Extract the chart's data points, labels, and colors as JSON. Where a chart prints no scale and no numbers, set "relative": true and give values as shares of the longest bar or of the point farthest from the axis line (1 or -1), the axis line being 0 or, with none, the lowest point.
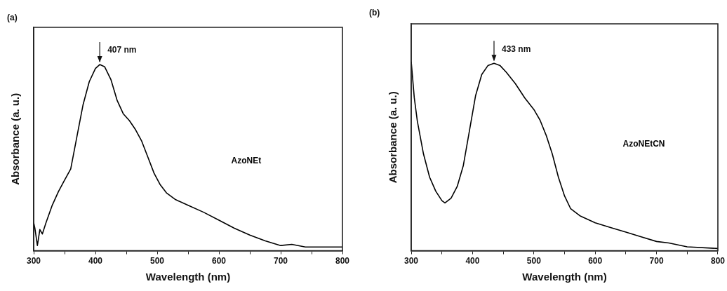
{
  "chart_data": [
    {
      "type": "line",
      "title": "(a)",
      "xlabel": "Wavelength (nm)",
      "ylabel": "Absorbance (a. u.)",
      "relative": true,
      "xlim": [
        300,
        800
      ],
      "xticks": [
        300,
        {
          "value": 350,
          "label": null
        },
        400,
        {
          "value": 450,
          "label": null
        },
        500,
        {
          "value": 550,
          "label": null
        },
        600,
        {
          "value": 650,
          "label": null
        },
        700,
        {
          "value": 750,
          "label": null
        },
        800
      ],
      "grid": false,
      "legend": false,
      "marker": "none",
      "line_style": "solid",
      "annotations": [
        {
          "text": "407 nm",
          "x": 407,
          "y": 1
        }
      ],
      "series": [
        {
          "name": "AzoNEt",
          "color": "#000000",
          "x": [
            300,
            302,
            306,
            310,
            314,
            320,
            330,
            340,
            350,
            360,
            370,
            380,
            390,
            400,
            407,
            415,
            425,
            435,
            445,
            455,
            465,
            475,
            485,
            495,
            505,
            515,
            530,
            550,
            575,
            600,
            625,
            650,
            675,
            700,
            718,
            740,
            800
          ],
          "values": [
            0.151,
            0.12,
            0.028,
            0.114,
            0.09,
            0.151,
            0.244,
            0.317,
            0.379,
            0.44,
            0.613,
            0.785,
            0.908,
            0.979,
            1,
            0.988,
            0.92,
            0.809,
            0.736,
            0.699,
            0.65,
            0.588,
            0.502,
            0.416,
            0.354,
            0.311,
            0.274,
            0.244,
            0.207,
            0.164,
            0.121,
            0.084,
            0.053,
            0.028,
            0.034,
            0.02,
            0.02
          ]
        }
      ]
    },
    {
      "type": "line",
      "title": "(b)",
      "xlabel": "Wavelength (nm)",
      "ylabel": "Absorbance (a. u.)",
      "relative": true,
      "xlim": [
        300,
        800
      ],
      "xticks": [
        300,
        {
          "value": 350,
          "label": null
        },
        400,
        {
          "value": 450,
          "label": null
        },
        500,
        {
          "value": 550,
          "label": null
        },
        600,
        {
          "value": 650,
          "label": null
        },
        700,
        {
          "value": 750,
          "label": null
        },
        800
      ],
      "grid": false,
      "legend": false,
      "marker": "none",
      "line_style": "solid",
      "annotations": [
        {
          "text": "433 nm",
          "x": 435,
          "y": 0.991
        }
      ],
      "series": [
        {
          "name": "AzoNEtCN",
          "color": "#000000",
          "x": [
            300,
            305,
            310,
            320,
            330,
            340,
            350,
            355,
            365,
            375,
            385,
            395,
            405,
            415,
            425,
            435,
            445,
            455,
            470,
            485,
            500,
            510,
            520,
            530,
            540,
            550,
            560,
            575,
            600,
            625,
            650,
            675,
            700,
            720,
            750,
            800
          ],
          "values": [
            1,
            0.809,
            0.685,
            0.512,
            0.389,
            0.315,
            0.265,
            0.253,
            0.278,
            0.34,
            0.451,
            0.636,
            0.821,
            0.932,
            0.979,
            0.991,
            0.979,
            0.944,
            0.883,
            0.809,
            0.747,
            0.691,
            0.611,
            0.512,
            0.389,
            0.29,
            0.222,
            0.185,
            0.148,
            0.123,
            0.099,
            0.074,
            0.049,
            0.041,
            0.021,
            0.012
          ]
        }
      ]
    }
  ]
}
